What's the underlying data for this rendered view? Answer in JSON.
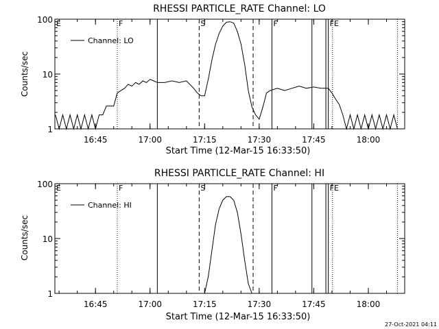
{
  "footer": {
    "timestamp": "27-Oct-2021 04:11"
  },
  "chart_data": [
    {
      "type": "line",
      "title": "RHESSI PARTICLE_RATE Channel: LO",
      "xlabel": "Start Time (12-Mar-15 16:33:50)",
      "ylabel": "Counts/sec",
      "yscale": "log",
      "ylim": [
        1,
        100
      ],
      "xlim": [
        "16:33:50",
        "18:10:00"
      ],
      "x_ticks": [
        "16:45",
        "17:00",
        "17:15",
        "17:30",
        "17:45",
        "18:00"
      ],
      "y_ticks": [
        "1",
        "10",
        "100"
      ],
      "legend": {
        "position": "top-left",
        "label": "Channel: LO"
      },
      "markers": [
        {
          "label": "E",
          "time": "16:33:50",
          "style": "none"
        },
        {
          "label": "F",
          "time": "16:51:00",
          "style": "dotted"
        },
        {
          "label": "",
          "time": "17:02:00",
          "style": "solid"
        },
        {
          "label": "S",
          "time": "17:13:30",
          "style": "dashed"
        },
        {
          "label": "",
          "time": "17:28:20",
          "style": "dashed"
        },
        {
          "label": "F",
          "time": "17:33:30",
          "style": "solid"
        },
        {
          "label": "",
          "time": "17:44:30",
          "style": "solid"
        },
        {
          "label": "",
          "time": "17:48:20",
          "style": "solid"
        },
        {
          "label": "F",
          "time": "17:49:00",
          "style": "solid"
        },
        {
          "label": "E",
          "time": "17:50:10",
          "style": "dotted"
        },
        {
          "label": "",
          "time": "18:08:00",
          "style": "dotted"
        }
      ],
      "series": [
        {
          "name": "Channel: LO",
          "points": [
            [
              "16:34:00",
              1.8
            ],
            [
              "16:35:00",
              1
            ],
            [
              "16:36:00",
              1.8
            ],
            [
              "16:37:00",
              1
            ],
            [
              "16:38:00",
              1.8
            ],
            [
              "16:39:00",
              1
            ],
            [
              "16:40:00",
              1.8
            ],
            [
              "16:41:00",
              1
            ],
            [
              "16:42:00",
              1.8
            ],
            [
              "16:43:00",
              1
            ],
            [
              "16:44:00",
              1.8
            ],
            [
              "16:45:00",
              1
            ],
            [
              "16:46:00",
              1.8
            ],
            [
              "16:47:00",
              1.8
            ],
            [
              "16:48:00",
              2.6
            ],
            [
              "16:49:00",
              2.6
            ],
            [
              "16:50:00",
              2.6
            ],
            [
              "16:51:00",
              4.5
            ],
            [
              "16:52:00",
              5.0
            ],
            [
              "16:53:00",
              5.5
            ],
            [
              "16:54:00",
              6.5
            ],
            [
              "16:55:00",
              6.0
            ],
            [
              "16:56:00",
              7.0
            ],
            [
              "16:57:00",
              6.5
            ],
            [
              "16:58:00",
              7.5
            ],
            [
              "16:59:00",
              7.0
            ],
            [
              "17:00:00",
              8.0
            ],
            [
              "17:01:00",
              7.5
            ],
            [
              "17:02:00",
              7.0
            ],
            [
              "17:04:00",
              7.0
            ],
            [
              "17:06:00",
              7.5
            ],
            [
              "17:08:00",
              7.0
            ],
            [
              "17:10:00",
              7.5
            ],
            [
              "17:12:00",
              5.5
            ],
            [
              "17:13:00",
              4.5
            ],
            [
              "17:14:00",
              4.0
            ],
            [
              "17:15:00",
              4.0
            ],
            [
              "17:16:00",
              8.0
            ],
            [
              "17:17:00",
              18
            ],
            [
              "17:18:00",
              35
            ],
            [
              "17:19:00",
              55
            ],
            [
              "17:20:00",
              75
            ],
            [
              "17:21:00",
              88
            ],
            [
              "17:22:00",
              90
            ],
            [
              "17:23:00",
              85
            ],
            [
              "17:24:00",
              60
            ],
            [
              "17:25:00",
              35
            ],
            [
              "17:26:00",
              15
            ],
            [
              "17:27:00",
              5.0
            ],
            [
              "17:28:00",
              2.5
            ],
            [
              "17:29:00",
              1.8
            ],
            [
              "17:30:00",
              1.5
            ],
            [
              "17:31:00",
              2.5
            ],
            [
              "17:32:00",
              4.5
            ],
            [
              "17:33:00",
              5.0
            ],
            [
              "17:35:00",
              5.5
            ],
            [
              "17:37:00",
              5.0
            ],
            [
              "17:39:00",
              5.5
            ],
            [
              "17:41:00",
              6.0
            ],
            [
              "17:43:00",
              5.5
            ],
            [
              "17:45:00",
              5.8
            ],
            [
              "17:47:00",
              5.5
            ],
            [
              "17:49:00",
              5.5
            ],
            [
              "17:50:00",
              4.5
            ],
            [
              "17:51:00",
              3.5
            ],
            [
              "17:52:00",
              2.8
            ],
            [
              "17:53:00",
              1.8
            ],
            [
              "17:54:00",
              1
            ],
            [
              "17:55:00",
              1.8
            ],
            [
              "17:56:00",
              1
            ],
            [
              "17:57:00",
              1.8
            ],
            [
              "17:58:00",
              1
            ],
            [
              "17:59:00",
              1.8
            ],
            [
              "18:00:00",
              1
            ],
            [
              "18:01:00",
              1.8
            ],
            [
              "18:02:00",
              1
            ],
            [
              "18:03:00",
              1.8
            ],
            [
              "18:04:00",
              1
            ],
            [
              "18:05:00",
              1.8
            ],
            [
              "18:06:00",
              1
            ],
            [
              "18:07:00",
              1.8
            ],
            [
              "18:08:00",
              1
            ]
          ]
        }
      ]
    },
    {
      "type": "line",
      "title": "RHESSI PARTICLE_RATE Channel: HI",
      "xlabel": "Start Time (12-Mar-15 16:33:50)",
      "ylabel": "Counts/sec",
      "yscale": "log",
      "ylim": [
        1,
        100
      ],
      "xlim": [
        "16:33:50",
        "18:10:00"
      ],
      "x_ticks": [
        "16:45",
        "17:00",
        "17:15",
        "17:30",
        "17:45",
        "18:00"
      ],
      "y_ticks": [
        "1",
        "10",
        "100"
      ],
      "legend": {
        "position": "top-left",
        "label": "Channel: HI"
      },
      "markers": [
        {
          "label": "E",
          "time": "16:33:50",
          "style": "none"
        },
        {
          "label": "F",
          "time": "16:51:00",
          "style": "dotted"
        },
        {
          "label": "",
          "time": "17:02:00",
          "style": "solid"
        },
        {
          "label": "S",
          "time": "17:13:30",
          "style": "dashed"
        },
        {
          "label": "",
          "time": "17:28:20",
          "style": "dashed"
        },
        {
          "label": "F",
          "time": "17:33:30",
          "style": "solid"
        },
        {
          "label": "",
          "time": "17:44:30",
          "style": "solid"
        },
        {
          "label": "",
          "time": "17:48:20",
          "style": "solid"
        },
        {
          "label": "F",
          "time": "17:49:00",
          "style": "solid"
        },
        {
          "label": "E",
          "time": "17:50:10",
          "style": "dotted"
        },
        {
          "label": "",
          "time": "18:08:00",
          "style": "dotted"
        }
      ],
      "series": [
        {
          "name": "Channel: HI",
          "points": [
            [
              "17:15:00",
              1
            ],
            [
              "17:16:00",
              2.0
            ],
            [
              "17:17:00",
              6.0
            ],
            [
              "17:18:00",
              18
            ],
            [
              "17:19:00",
              35
            ],
            [
              "17:20:00",
              50
            ],
            [
              "17:21:00",
              58
            ],
            [
              "17:22:00",
              58
            ],
            [
              "17:23:00",
              50
            ],
            [
              "17:24:00",
              30
            ],
            [
              "17:25:00",
              12
            ],
            [
              "17:26:00",
              4.0
            ],
            [
              "17:27:00",
              1.5
            ],
            [
              "17:28:00",
              1
            ]
          ]
        }
      ]
    }
  ]
}
